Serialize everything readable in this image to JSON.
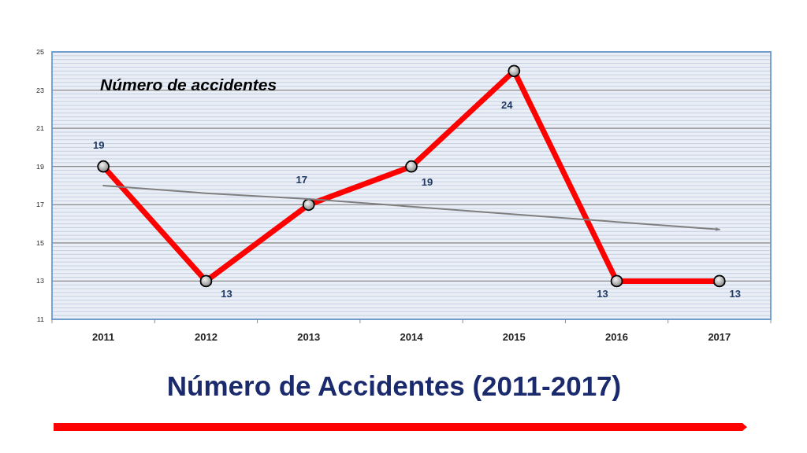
{
  "chart_data": {
    "type": "line",
    "title": "Número de Accidentes (2011-2017)",
    "subtitle": "Número de accidentes",
    "categories": [
      "2011",
      "2012",
      "2013",
      "2014",
      "2015",
      "2016",
      "2017"
    ],
    "series": [
      {
        "color": "#ff0000",
        "values": [
          19,
          13,
          17,
          19,
          24,
          13,
          13
        ],
        "value_labels": [
          "19",
          "13",
          "17",
          "19",
          "24",
          "13",
          "13"
        ]
      },
      {
        "type": "line",
        "color": "#7f7f7f",
        "marker": "none",
        "values": [
          18.0,
          17.6,
          17.3,
          16.9,
          16.5,
          16.1,
          15.7
        ]
      }
    ],
    "ylim": [
      11,
      25
    ],
    "yticks": [
      11,
      13,
      15,
      17,
      19,
      21,
      23,
      25
    ],
    "grid": "y",
    "marker": "circle"
  }
}
